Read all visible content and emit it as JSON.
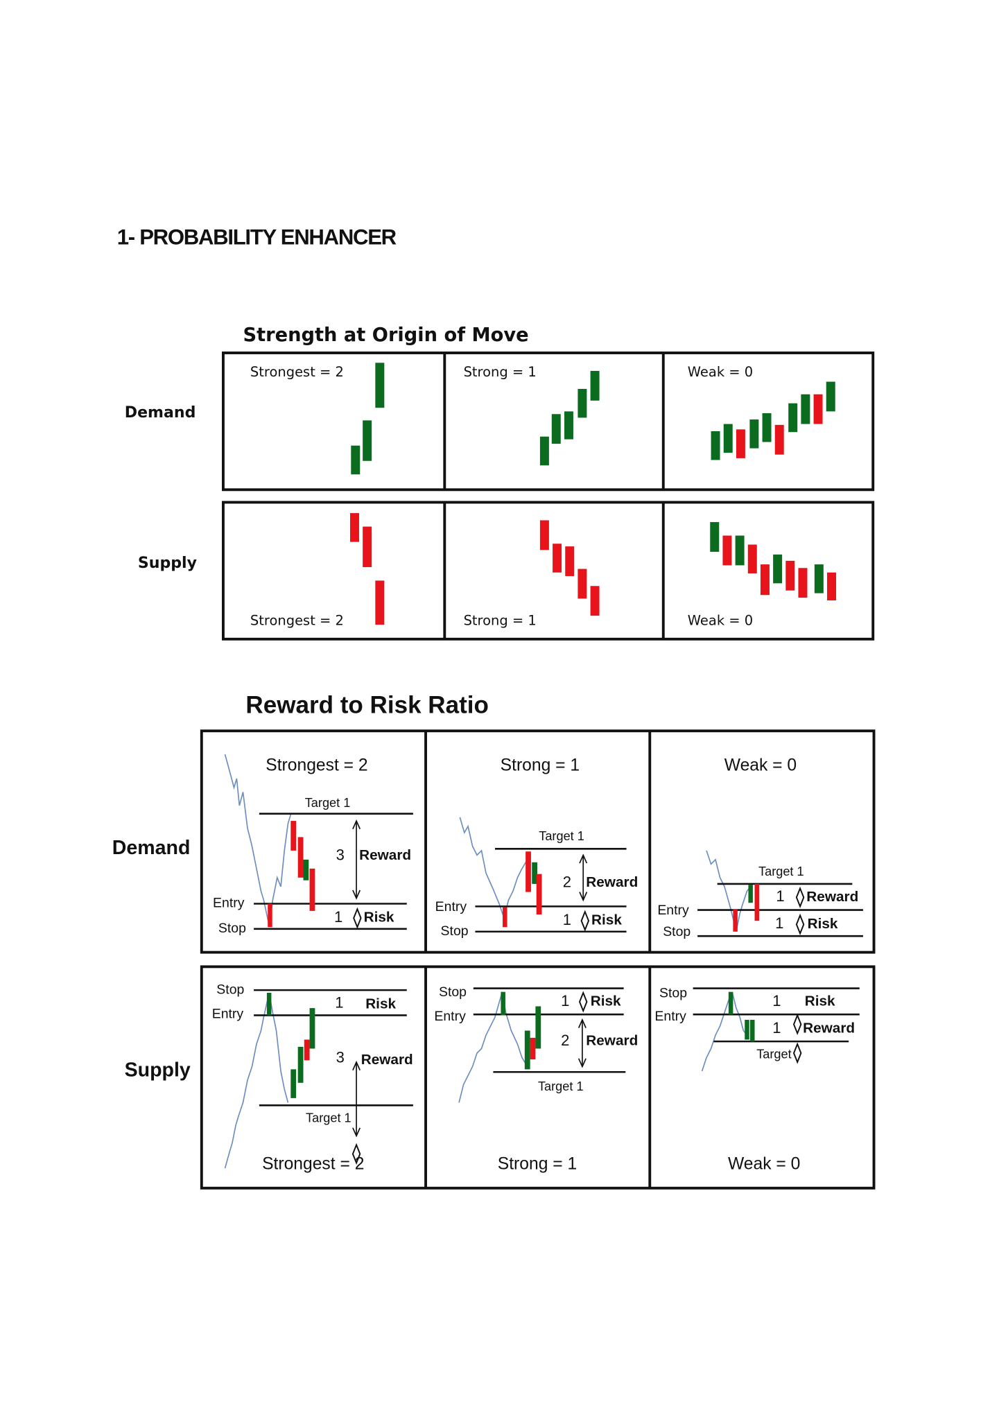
{
  "heading": "1- PROBABILITY ENHANCER",
  "figure1": {
    "title": "Strength at Origin of Move",
    "rows": [
      "Demand",
      "Supply"
    ],
    "cells": [
      [
        "Strongest = 2",
        "Strong = 1",
        "Weak = 0"
      ],
      [
        "Strongest = 2",
        "Strong = 1",
        "Weak = 0"
      ]
    ]
  },
  "figure2": {
    "title": "Reward to Risk Ratio",
    "rows": [
      "Demand",
      "Supply"
    ],
    "panels": [
      [
        {
          "title": "Strongest = 2",
          "target": "Target 1",
          "entry": "Entry",
          "stop": "Stop",
          "reward_ratio": 3,
          "reward": "Reward",
          "risk_ratio": 1,
          "risk": "Risk"
        },
        {
          "title": "Strong = 1",
          "target": "Target 1",
          "entry": "Entry",
          "stop": "Stop",
          "reward_ratio": 2,
          "reward": "Reward",
          "risk_ratio": 1,
          "risk": "Risk"
        },
        {
          "title": "Weak = 0",
          "target": "Target 1",
          "entry": "Entry",
          "stop": "Stop",
          "reward_ratio": 1,
          "reward": "Reward",
          "risk_ratio": 1,
          "risk": "Risk"
        }
      ],
      [
        {
          "title": "Strongest = 2",
          "target": "Target 1",
          "entry": "Entry",
          "stop": "Stop",
          "reward_ratio": 3,
          "reward": "Reward",
          "risk_ratio": 1,
          "risk": "Risk"
        },
        {
          "title": "Strong = 1",
          "target": "Target 1",
          "entry": "Entry",
          "stop": "Stop",
          "reward_ratio": 2,
          "reward": "Reward",
          "risk_ratio": 1,
          "risk": "Risk"
        },
        {
          "title": "Weak = 0",
          "target": "Target",
          "entry": "Entry",
          "stop": "Stop",
          "reward_ratio": 1,
          "reward": "Reward",
          "risk_ratio": 1,
          "risk": "Risk"
        }
      ]
    ]
  }
}
